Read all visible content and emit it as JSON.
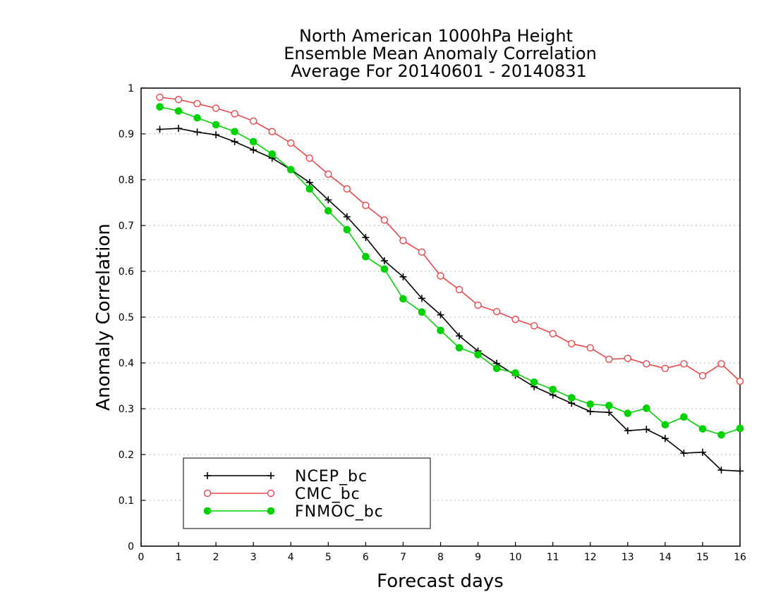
{
  "chart_data": {
    "type": "line",
    "title": [
      "North American 1000hPa Height",
      "Ensemble Mean Anomaly Correlation",
      "Average For 20140601 - 20140831"
    ],
    "xlabel": "Forecast days",
    "ylabel": "Anomaly Correlation",
    "xlim": [
      0,
      16
    ],
    "ylim": [
      0,
      1
    ],
    "xticks": [
      "0",
      "1",
      "2",
      "3",
      "4",
      "5",
      "6",
      "7",
      "8",
      "9",
      "10",
      "11",
      "12",
      "13",
      "14",
      "15",
      "16"
    ],
    "yticks": [
      "0",
      "0.1",
      "0.2",
      "0.3",
      "0.4",
      "0.5",
      "0.6",
      "0.7",
      "0.8",
      "0.9",
      "1"
    ],
    "grid": "horizontal dotted",
    "legend_position": "bottom-left",
    "x": [
      0.5,
      1,
      1.5,
      2,
      2.5,
      3,
      3.5,
      4,
      4.5,
      5,
      5.5,
      6,
      6.5,
      7,
      7.5,
      8,
      8.5,
      9,
      9.5,
      10,
      10.5,
      11,
      11.5,
      12,
      12.5,
      13,
      13.5,
      14,
      14.5,
      15,
      15.5,
      16
    ],
    "series": [
      {
        "name": "NCEP_bc",
        "color": "#000000",
        "marker": "plus",
        "values": [
          0.91,
          0.912,
          0.904,
          0.898,
          0.883,
          0.865,
          0.847,
          0.822,
          0.794,
          0.756,
          0.719,
          0.674,
          0.623,
          0.588,
          0.541,
          0.505,
          0.459,
          0.426,
          0.399,
          0.373,
          0.348,
          0.33,
          0.312,
          0.294,
          0.292,
          0.252,
          0.255,
          0.235,
          0.203,
          0.205,
          0.166,
          0.164
        ]
      },
      {
        "name": "CMC_bc",
        "color": "#e8474a",
        "marker": "open-circle",
        "values": [
          0.98,
          0.975,
          0.966,
          0.956,
          0.944,
          0.928,
          0.905,
          0.88,
          0.847,
          0.812,
          0.78,
          0.744,
          0.712,
          0.667,
          0.642,
          0.59,
          0.56,
          0.526,
          0.512,
          0.495,
          0.481,
          0.464,
          0.442,
          0.433,
          0.408,
          0.41,
          0.398,
          0.388,
          0.398,
          0.372,
          0.398,
          0.36
        ]
      },
      {
        "name": "FNMOC_bc",
        "color": "#00d200",
        "marker": "filled-circle",
        "values": [
          0.959,
          0.95,
          0.935,
          0.92,
          0.905,
          0.883,
          0.856,
          0.822,
          0.78,
          0.732,
          0.691,
          0.632,
          0.605,
          0.54,
          0.511,
          0.471,
          0.433,
          0.418,
          0.388,
          0.378,
          0.358,
          0.342,
          0.324,
          0.31,
          0.307,
          0.29,
          0.301,
          0.265,
          0.282,
          0.256,
          0.243,
          0.257
        ]
      }
    ]
  }
}
